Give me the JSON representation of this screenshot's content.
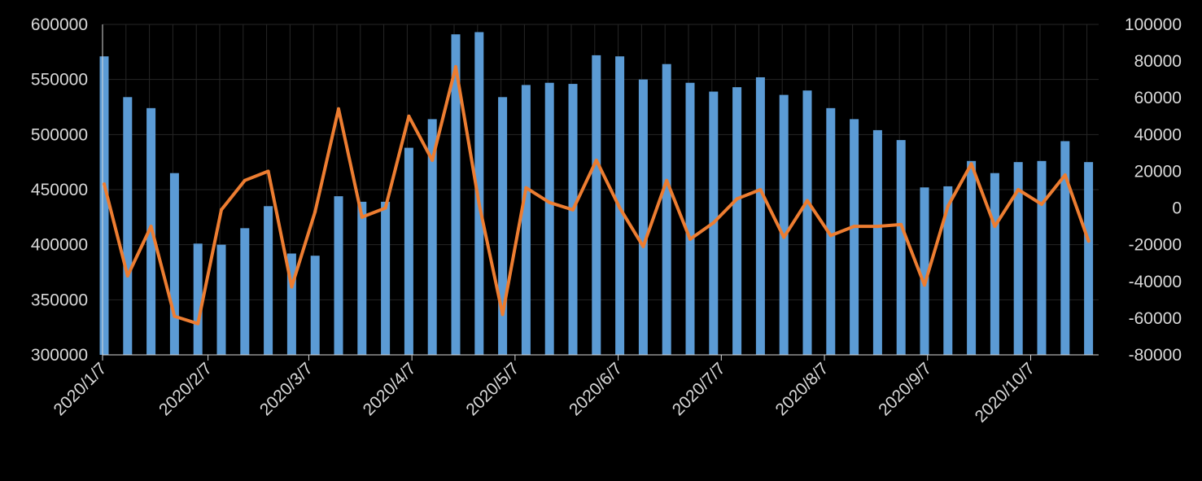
{
  "chart_data": {
    "type": "bar+line",
    "title": "",
    "xlabel": "",
    "ylabel_left": "",
    "ylabel_right": "",
    "x_tick_labels": [
      "2020/1/7",
      "2020/2/7",
      "2020/3/7",
      "2020/4/7",
      "2020/5/7",
      "2020/6/7",
      "2020/7/7",
      "2020/8/7",
      "2020/9/7",
      "2020/10/7"
    ],
    "x_tick_index": [
      0,
      4.5,
      8.8,
      13.2,
      17.6,
      22.0,
      26.4,
      30.8,
      35.2,
      39.6
    ],
    "y_left": {
      "ylim": [
        300000,
        600000
      ],
      "ticks": [
        "300000",
        "350000",
        "400000",
        "450000",
        "500000",
        "550000",
        "600000"
      ]
    },
    "y_right": {
      "ylim": [
        -80000,
        100000
      ],
      "ticks": [
        "-80000",
        "-60000",
        "-40000",
        "-20000",
        "0",
        "20000",
        "40000",
        "60000",
        "80000",
        "100000"
      ]
    },
    "grid": true,
    "colors": {
      "bars": "#5b9bd5",
      "line": "#ed7d31",
      "background": "#000000",
      "text": "#d9d9d9"
    },
    "series": [
      {
        "kind": "bar",
        "axis": "left",
        "values": [
          571000,
          534000,
          524000,
          465000,
          401000,
          400000,
          415000,
          435000,
          392000,
          390000,
          444000,
          439000,
          439000,
          488000,
          514000,
          591000,
          593000,
          534000,
          545000,
          547000,
          546000,
          572000,
          571000,
          550000,
          564000,
          547000,
          539000,
          543000,
          552000,
          536000,
          540000,
          524000,
          514000,
          504000,
          495000,
          452000,
          453000,
          476000,
          465000,
          475000,
          476000,
          494000,
          475000
        ]
      },
      {
        "kind": "line",
        "axis": "right",
        "values": [
          13000,
          -37000,
          -10000,
          -59000,
          -63000,
          -1000,
          15000,
          20000,
          -43000,
          -2000,
          54000,
          -5000,
          0,
          50000,
          26000,
          77000,
          2000,
          -58000,
          11000,
          3000,
          -1000,
          26000,
          0,
          -21000,
          15000,
          -17000,
          -8000,
          5000,
          10000,
          -16000,
          4000,
          -15000,
          -10000,
          -10000,
          -9000,
          -42000,
          1000,
          24000,
          -10000,
          10000,
          2000,
          18000,
          -18000
        ]
      }
    ]
  }
}
